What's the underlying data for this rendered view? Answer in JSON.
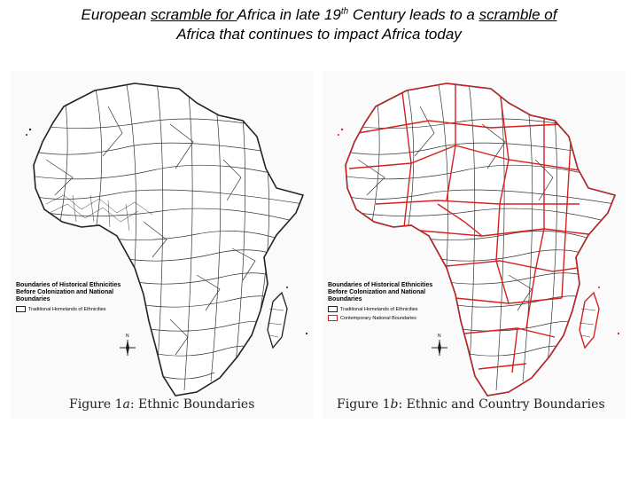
{
  "title": {
    "line1_pre": "European ",
    "line1_u1": "scramble for ",
    "line1_mid": "Africa in late 19",
    "line1_sup": "th",
    "line1_post": " Century leads to a ",
    "line1_u2": "scramble of",
    "line2": "Africa that continues to impact Africa today"
  },
  "figure_a": {
    "legend_title": "Boundaries of Historical Ethnicities Before Colonization and National Boundaries",
    "legend_items": [
      {
        "label": "Traditional Homelands of Ethnicities",
        "color": "#222222"
      }
    ],
    "caption_label": "Figure 1",
    "caption_letter": "a",
    "caption_text": ": Ethnic Boundaries",
    "compass_letter": "N"
  },
  "figure_b": {
    "legend_title": "Boundaries of Historical Ethnicities Before Colonization and National Boundaries",
    "legend_items": [
      {
        "label": "Traditional Homelands of Ethnicities",
        "color": "#222222"
      },
      {
        "label": "Contemporary National Boundaries",
        "color": "#d62020"
      }
    ],
    "caption_label": "Figure 1",
    "caption_letter": "b",
    "caption_text": ": Ethnic and Country Boundaries",
    "compass_letter": "N"
  },
  "colors": {
    "ethnic_boundary": "#222222",
    "national_boundary": "#d62020"
  }
}
